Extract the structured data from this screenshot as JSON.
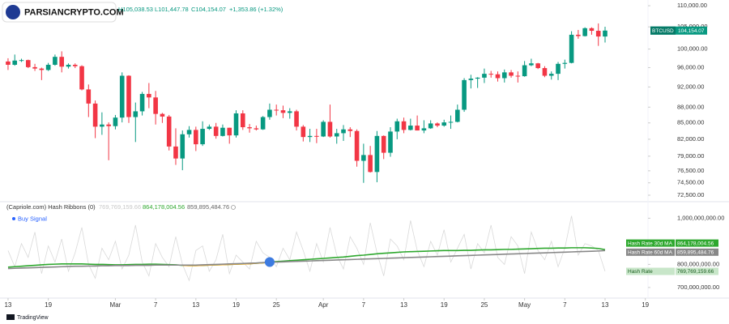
{
  "watermark": "PARSIANCRYPTO.COM",
  "brand": "TradingView",
  "chart_data": [
    {
      "type": "candlestick",
      "symbol": "BTCUSD",
      "ohlc_header": [
        "H105,038.53",
        "L101,447.78",
        "C104,154.07",
        "+1,353.86 (+1.32%)"
      ],
      "last_price_label": "104,154.07",
      "up_color": "#089981",
      "down_color": "#f23645",
      "log_scale": true,
      "xlim": [
        -1.2,
        95.4
      ],
      "ylim": [
        71600,
        111400
      ],
      "yticks": [
        {
          "value": 72500,
          "label": "72,500.00"
        },
        {
          "value": 74500,
          "label": "74,500.00"
        },
        {
          "value": 76500,
          "label": "76,500.00"
        },
        {
          "value": 79000,
          "label": "79,000.00"
        },
        {
          "value": 82000,
          "label": "82,000.00"
        },
        {
          "value": 85000,
          "label": "85,000.00"
        },
        {
          "value": 88000,
          "label": "88,000.00"
        },
        {
          "value": 92000,
          "label": "92,000.00"
        },
        {
          "value": 96000,
          "label": "96,000.00"
        },
        {
          "value": 100000,
          "label": "100,000.00"
        },
        {
          "value": 105000,
          "label": "105,000.00"
        },
        {
          "value": 110000,
          "label": "110,000.00"
        }
      ],
      "x": [
        0,
        1,
        2,
        3,
        4,
        5,
        6,
        7,
        8,
        9,
        10,
        11,
        12,
        13,
        14,
        15,
        16,
        17,
        18,
        19,
        20,
        21,
        22,
        23,
        24,
        25,
        26,
        27,
        28,
        29,
        30,
        31,
        32,
        33,
        34,
        35,
        36,
        37,
        38,
        39,
        40,
        41,
        42,
        43,
        44,
        45,
        46,
        47,
        48,
        49,
        50,
        51,
        52,
        53,
        54,
        55,
        56,
        57,
        58,
        59,
        60,
        61,
        62,
        63,
        64,
        65,
        66,
        67,
        68,
        69,
        70,
        71,
        72,
        73,
        74,
        75,
        76,
        77,
        78,
        79,
        80,
        81,
        82,
        83,
        84,
        85,
        86,
        87,
        88,
        89
      ],
      "open": [
        97300,
        96600,
        97500,
        97600,
        96100,
        95800,
        95500,
        96600,
        98300,
        96200,
        96600,
        96300,
        91500,
        88700,
        84300,
        84700,
        84400,
        86000,
        94300,
        86100,
        87200,
        90600,
        89900,
        86700,
        86200,
        80700,
        78600,
        82900,
        83700,
        81100,
        83900,
        84300,
        82600,
        84100,
        82700,
        86800,
        84200,
        84000,
        83800,
        86100,
        87500,
        87400,
        86900,
        87200,
        84300,
        82400,
        82600,
        82500,
        85200,
        82500,
        83100,
        83800,
        83500,
        78200,
        79200,
        76300,
        82600,
        79600,
        83400,
        85300,
        83700,
        84500,
        83600,
        84000,
        84900,
        84500,
        85100,
        85200,
        87500,
        93400,
        93700,
        93900,
        94700,
        94600,
        93800,
        95000,
        94300,
        94200,
        96500,
        96900,
        95900,
        94300,
        94700,
        96800,
        97000,
        103200,
        102900,
        104700,
        104100,
        102800.21
      ],
      "high": [
        98000,
        98800,
        97900,
        97700,
        96800,
        96000,
        97000,
        98800,
        99500,
        96900,
        96900,
        96500,
        92500,
        89300,
        87000,
        85100,
        86500,
        95000,
        94400,
        88900,
        91000,
        92800,
        91200,
        86900,
        86500,
        84000,
        83600,
        84400,
        84300,
        85300,
        84700,
        85000,
        84700,
        84100,
        87400,
        87400,
        84800,
        84500,
        86300,
        88700,
        88500,
        88300,
        87800,
        87500,
        84600,
        83900,
        83900,
        85500,
        88500,
        83900,
        84600,
        84200,
        83800,
        81200,
        80800,
        83500,
        82700,
        84200,
        85800,
        86000,
        85800,
        86400,
        85500,
        85500,
        85100,
        85600,
        86400,
        88500,
        93800,
        94500,
        94000,
        95800,
        95300,
        95200,
        95600,
        95500,
        95200,
        97400,
        97900,
        97000,
        96300,
        95200,
        97200,
        97700,
        104000,
        104300,
        104900,
        104900,
        105800,
        105038.53
      ],
      "low": [
        95500,
        96400,
        97200,
        95900,
        95300,
        93400,
        95300,
        96400,
        95000,
        95800,
        95900,
        91300,
        86100,
        82200,
        82800,
        78300,
        83800,
        85100,
        85000,
        81500,
        86400,
        87800,
        84700,
        85000,
        80000,
        77500,
        76600,
        82300,
        79900,
        80800,
        83700,
        82100,
        82500,
        81200,
        82300,
        83700,
        83200,
        83600,
        83700,
        85600,
        86400,
        85900,
        85800,
        83600,
        81600,
        81500,
        81300,
        82400,
        82300,
        81200,
        81700,
        82400,
        77200,
        74500,
        76200,
        74600,
        78500,
        78900,
        82000,
        83100,
        83600,
        83600,
        83100,
        83900,
        84200,
        84300,
        83900,
        85100,
        87100,
        91700,
        91800,
        92800,
        93900,
        93100,
        92900,
        93900,
        92900,
        94100,
        96300,
        95700,
        94000,
        93500,
        93400,
        95800,
        96900,
        102300,
        102800,
        103200,
        100700,
        101447.78
      ],
      "close": [
        96600,
        97500,
        97600,
        96100,
        95800,
        95500,
        96600,
        98300,
        96200,
        96600,
        96300,
        91500,
        88700,
        84300,
        84700,
        84400,
        86000,
        94300,
        86100,
        87200,
        90600,
        89900,
        86700,
        86200,
        80700,
        78600,
        82900,
        83700,
        81100,
        83900,
        84300,
        82600,
        84100,
        82700,
        86800,
        84200,
        84000,
        83800,
        86100,
        87500,
        87400,
        86900,
        87200,
        84300,
        82400,
        82600,
        82500,
        85200,
        82500,
        83100,
        83800,
        83500,
        78200,
        79200,
        76300,
        82600,
        79600,
        83400,
        85300,
        83700,
        84500,
        83600,
        84000,
        84900,
        84500,
        85100,
        85200,
        87500,
        93400,
        93700,
        93900,
        94700,
        94600,
        93800,
        95000,
        94300,
        94200,
        96500,
        96900,
        95900,
        94300,
        94700,
        96800,
        97000,
        103200,
        102900,
        104700,
        104100,
        102800.21,
        104154.07
      ]
    },
    {
      "type": "line",
      "title": "(Capriole.com) Hash Ribbons (0)",
      "xlim": [
        -1.2,
        95.4
      ],
      "ylim": [
        640000000,
        1040000000
      ],
      "yticks": [
        {
          "value": 700000000,
          "label": "700,000,000.00"
        },
        {
          "value": 800000000,
          "label": "800,000,000.00"
        },
        {
          "value": 1000000000,
          "label": "1,000,000,000.00"
        }
      ],
      "xticks": [
        {
          "value": 0,
          "label": "13"
        },
        {
          "value": 6,
          "label": "19"
        },
        {
          "value": 16,
          "label": "Mar"
        },
        {
          "value": 22,
          "label": "7"
        },
        {
          "value": 28,
          "label": "13"
        },
        {
          "value": 34,
          "label": "19"
        },
        {
          "value": 40,
          "label": "25"
        },
        {
          "value": 47,
          "label": "Apr"
        },
        {
          "value": 53,
          "label": "7"
        },
        {
          "value": 59,
          "label": "13"
        },
        {
          "value": 65,
          "label": "19"
        },
        {
          "value": 71,
          "label": "25"
        },
        {
          "value": 77,
          "label": "May"
        },
        {
          "value": 83,
          "label": "7"
        },
        {
          "value": 89,
          "label": "13"
        },
        {
          "value": 95,
          "label": "19"
        }
      ],
      "x": [
        0,
        1,
        2,
        3,
        4,
        5,
        6,
        7,
        8,
        9,
        10,
        11,
        12,
        13,
        14,
        15,
        16,
        17,
        18,
        19,
        20,
        21,
        22,
        23,
        24,
        25,
        26,
        27,
        28,
        29,
        30,
        31,
        32,
        33,
        34,
        35,
        36,
        37,
        38,
        39,
        40,
        41,
        42,
        43,
        44,
        45,
        46,
        47,
        48,
        49,
        50,
        51,
        52,
        53,
        54,
        55,
        56,
        57,
        58,
        59,
        60,
        61,
        62,
        63,
        64,
        65,
        66,
        67,
        68,
        69,
        70,
        71,
        72,
        73,
        74,
        75,
        76,
        77,
        78,
        79,
        80,
        81,
        82,
        83,
        84,
        85,
        86,
        87,
        88,
        89
      ],
      "series": [
        {
          "name": "Hash Rate",
          "color": "#d9d9d9",
          "label_color": "#c8e6c9",
          "last_label": "769,769,159.66",
          "values": [
            860000000.0,
            790000000.0,
            890000000.0,
            830000000.0,
            940000000.0,
            760000000.0,
            880000000.0,
            810000000.0,
            910000000.0,
            770000000.0,
            850000000.0,
            960000000.0,
            800000000.0,
            740000000.0,
            870000000.0,
            820000000.0,
            900000000.0,
            780000000.0,
            840000000.0,
            970000000.0,
            810000000.0,
            750000000.0,
            890000000.0,
            830000000.0,
            790000000.0,
            920000000.0,
            800000000.0,
            730000000.0,
            860000000.0,
            880000000.0,
            770000000.0,
            820000000.0,
            930000000.0,
            760000000.0,
            840000000.0,
            810000000.0,
            780000000.0,
            900000000.0,
            850000000.0,
            830000000.0,
            790000000.0,
            870000000.0,
            820000000.0,
            940000000.0,
            860000000.0,
            770000000.0,
            890000000.0,
            810000000.0,
            960000000.0,
            840000000.0,
            780000000.0,
            920000000.0,
            870000000.0,
            800000000.0,
            980000000.0,
            850000000.0,
            750000000.0,
            910000000.0,
            880000000.0,
            820000000.0,
            990000000.0,
            860000000.0,
            790000000.0,
            900000000.0,
            840000000.0,
            950000000.0,
            810000000.0,
            870000000.0,
            930000000.0,
            780000000.0,
            890000000.0,
            850000000.0,
            970000000.0,
            830000000.0,
            800000000.0,
            920000000.0,
            880000000.0,
            760000000.0,
            940000000.0,
            860000000.0,
            820000000.0,
            900000000.0,
            790000000.0,
            870000000.0,
            1010000000.0,
            840000000.0,
            890000000.0,
            880000000.0,
            860000000.0,
            769769159.66
          ]
        },
        {
          "name": "Hash Rate 30d MA",
          "color": "#2ea82e",
          "label_color": "#2ea82e",
          "last_label": "864,178,004.56",
          "highlight": {
            "from": 26,
            "to": 39,
            "color": "#f5a623"
          },
          "values": [
            788000000.0,
            790000000.0,
            792000000.0,
            794000000.0,
            796000000.0,
            798000000.0,
            800000000.0,
            801000000.0,
            802000000.0,
            802000000.0,
            802000000.0,
            802000000.0,
            801000000.0,
            800000000.0,
            800000000.0,
            799000000.0,
            798000000.0,
            798000000.0,
            799000000.0,
            800000000.0,
            800000000.0,
            801000000.0,
            801000000.0,
            800000000.0,
            799000000.0,
            798000000.0,
            796000000.0,
            795000000.0,
            795000000.0,
            796000000.0,
            797000000.0,
            798000000.0,
            799000000.0,
            800000000.0,
            801000000.0,
            802000000.0,
            803000000.0,
            805000000.0,
            807000000.0,
            810000000.0,
            812000000.0,
            814000000.0,
            816000000.0,
            818000000.0,
            820000000.0,
            822000000.0,
            824000000.0,
            826000000.0,
            828000000.0,
            830000000.0,
            832000000.0,
            835000000.0,
            838000000.0,
            840000000.0,
            843000000.0,
            846000000.0,
            848000000.0,
            850000000.0,
            852000000.0,
            854000000.0,
            855000000.0,
            856000000.0,
            857000000.0,
            858000000.0,
            859000000.0,
            860000000.0,
            860000000.0,
            860000000.0,
            861000000.0,
            861000000.0,
            862000000.0,
            863000000.0,
            863000000.0,
            864000000.0,
            865000000.0,
            865000000.0,
            866000000.0,
            867000000.0,
            868000000.0,
            869000000.0,
            870000000.0,
            870000000.0,
            871000000.0,
            871000000.0,
            872000000.0,
            872000000.0,
            872000000.0,
            871000000.0,
            869000000.0,
            864178004.56
          ]
        },
        {
          "name": "Hash Rate 60d MA",
          "color": "#888888",
          "label_color": "#888888",
          "last_label": "859,895,484.76",
          "values": [
            782000000.0,
            783000000.0,
            784000000.0,
            785000000.0,
            786000000.0,
            787000000.0,
            788000000.0,
            789000000.0,
            790000000.0,
            791000000.0,
            792000000.0,
            792000000.0,
            793000000.0,
            793000000.0,
            794000000.0,
            794000000.0,
            795000000.0,
            795000000.0,
            795000000.0,
            796000000.0,
            796000000.0,
            796000000.0,
            797000000.0,
            797000000.0,
            797000000.0,
            797000000.0,
            797000000.0,
            797000000.0,
            797000000.0,
            798000000.0,
            799000000.0,
            800000000.0,
            801000000.0,
            802000000.0,
            803000000.0,
            804000000.0,
            805000000.0,
            806000000.0,
            808000000.0,
            809000000.0,
            810000000.0,
            811000000.0,
            812000000.0,
            813000000.0,
            814000000.0,
            815000000.0,
            816000000.0,
            817000000.0,
            818000000.0,
            819000000.0,
            820000000.0,
            821000000.0,
            822000000.0,
            823000000.0,
            824000000.0,
            825000000.0,
            826000000.0,
            827000000.0,
            828000000.0,
            829000000.0,
            830000000.0,
            831000000.0,
            832000000.0,
            833000000.0,
            834000000.0,
            835000000.0,
            836000000.0,
            837000000.0,
            838000000.0,
            839000000.0,
            840000000.0,
            841000000.0,
            842000000.0,
            843000000.0,
            844000000.0,
            845000000.0,
            846000000.0,
            847000000.0,
            848000000.0,
            849000000.0,
            850000000.0,
            851000000.0,
            852000000.0,
            853000000.0,
            854000000.0,
            855000000.0,
            856000000.0,
            857000000.0,
            858000000.0,
            859895484.76
          ]
        }
      ],
      "buy_signal": {
        "name": "Buy Signal",
        "color": "#3d7be0",
        "x": 39,
        "value": 810000000
      }
    }
  ]
}
